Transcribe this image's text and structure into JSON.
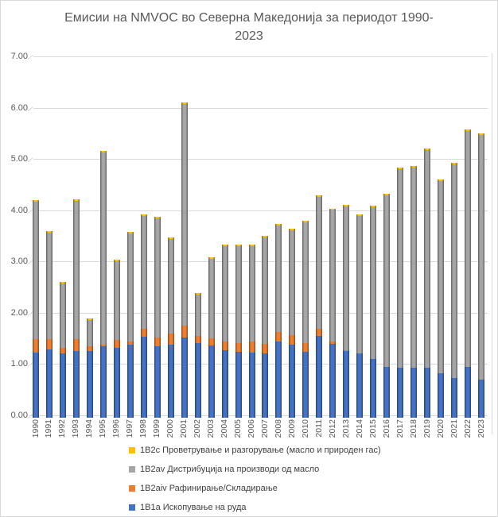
{
  "title": {
    "line1": "Емисии на NMVOC во Северна Македонија за периодот 1990-",
    "line2": "2023"
  },
  "colors": {
    "title_text": "#595959",
    "axis_text": "#595959",
    "legend_text": "#404040",
    "gridline": "#d9d9d9",
    "series_blue": "#4472c4",
    "series_orange": "#ed7d31",
    "series_gray": "#a5a5a5",
    "series_yellow": "#ffc000"
  },
  "chart_data": {
    "type": "bar",
    "stacked": true,
    "title": "Емисии на NMVOC во Северна Македонија за периодот 1990-2023",
    "xlabel": "",
    "ylabel": "",
    "ylim": [
      0,
      7
    ],
    "ytick_step": 1,
    "ytick_format": "0.00",
    "grid": true,
    "legend_position": "bottom-left",
    "categories": [
      "1990",
      "1991",
      "1992",
      "1993",
      "1994",
      "1995",
      "1996",
      "1997",
      "1998",
      "1999",
      "2000",
      "2001",
      "2002",
      "2003",
      "2004",
      "2005",
      "2006",
      "2007",
      "2008",
      "2009",
      "2010",
      "2011",
      "2012",
      "2013",
      "2014",
      "2015",
      "2016",
      "2017",
      "2018",
      "2019",
      "2020",
      "2021",
      "2022",
      "2023"
    ],
    "series": [
      {
        "name": "1B1a Ископување на руда",
        "color": "#4472c4",
        "values": [
          1.27,
          1.33,
          1.25,
          1.3,
          1.3,
          1.4,
          1.37,
          1.43,
          1.58,
          1.4,
          1.43,
          1.57,
          1.46,
          1.41,
          1.32,
          1.28,
          1.27,
          1.26,
          1.48,
          1.43,
          1.28,
          1.6,
          1.44,
          1.3,
          1.26,
          1.15,
          0.99,
          0.98,
          0.97,
          0.97,
          0.86,
          0.77,
          0.99,
          0.75
        ]
      },
      {
        "name": "1B2aiv Рафинирање/Складирање",
        "color": "#ed7d31",
        "values": [
          0.26,
          0.2,
          0.11,
          0.24,
          0.09,
          0.03,
          0.14,
          0.05,
          0.15,
          0.17,
          0.21,
          0.23,
          0.14,
          0.14,
          0.17,
          0.18,
          0.21,
          0.18,
          0.2,
          0.18,
          0.18,
          0.13,
          0.04,
          0.02,
          0,
          0,
          0,
          0,
          0,
          0,
          0,
          0,
          0,
          0
        ]
      },
      {
        "name": "1B2av Дистрибуција на производи од масло",
        "color": "#a5a5a5",
        "values": [
          2.68,
          2.08,
          1.26,
          2.69,
          0.51,
          3.74,
          1.54,
          2.11,
          2.2,
          2.32,
          1.84,
          4.32,
          0.8,
          1.55,
          1.86,
          1.89,
          1.87,
          2.08,
          2.07,
          2.05,
          2.35,
          2.57,
          2.57,
          2.8,
          2.68,
          2.95,
          3.35,
          3.87,
          3.91,
          4.25,
          3.76,
          4.17,
          4.6,
          4.76
        ]
      },
      {
        "name": "1B2c Проветрување и разгорување (масло и природен гас)",
        "color": "#ffc000",
        "values": [
          0.03,
          0.03,
          0.03,
          0.03,
          0.03,
          0.03,
          0.03,
          0.03,
          0.03,
          0.03,
          0.03,
          0.03,
          0.03,
          0.03,
          0.03,
          0.03,
          0.03,
          0.03,
          0.03,
          0.03,
          0.03,
          0.03,
          0.03,
          0.03,
          0.03,
          0.03,
          0.03,
          0.03,
          0.03,
          0.03,
          0.03,
          0.03,
          0.03,
          0.03
        ]
      }
    ],
    "legend": [
      {
        "label": "1B2c Проветрување и разгорување (масло и природен гас)",
        "color": "#ffc000"
      },
      {
        "label": "1B2av Дистрибуција на производи од масло",
        "color": "#a5a5a5"
      },
      {
        "label": "1B2aiv Рафинирање/Складирање",
        "color": "#ed7d31"
      },
      {
        "label": "1B1a Ископување на руда",
        "color": "#4472c4"
      }
    ]
  }
}
